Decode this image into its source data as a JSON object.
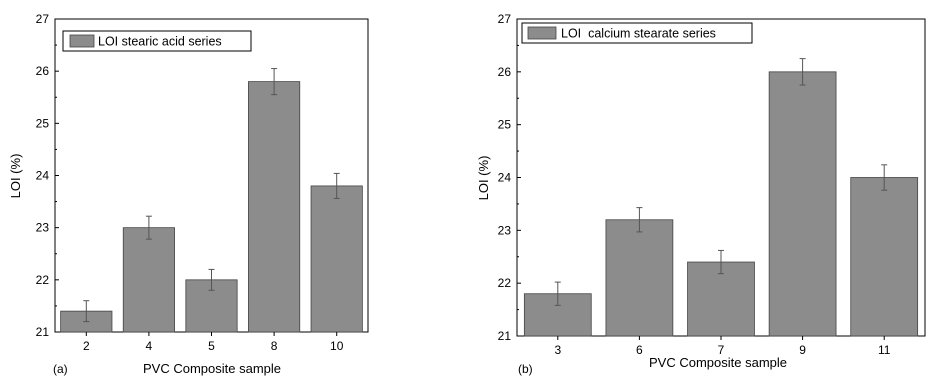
{
  "chart_data": [
    {
      "type": "bar",
      "panel_label": "(a)",
      "categories": [
        "2",
        "4",
        "5",
        "8",
        "10"
      ],
      "series": [
        {
          "name": "LOI stearic acid series",
          "values": [
            21.4,
            23.0,
            22.0,
            25.8,
            23.8
          ],
          "error": [
            0.2,
            0.22,
            0.2,
            0.25,
            0.24
          ]
        }
      ],
      "xlabel": "PVC Composite sample",
      "ylabel": "LOI (%)",
      "ylim": [
        21,
        27
      ],
      "yticks": [
        "21",
        "22",
        "23",
        "24",
        "25",
        "26",
        "27"
      ],
      "bar_color": "#8c8c8c",
      "legend_position": "top-left",
      "grid": false
    },
    {
      "type": "bar",
      "panel_label": "(b)",
      "categories": [
        "3",
        "6",
        "7",
        "9",
        "11"
      ],
      "series": [
        {
          "name": "LOI  calcium stearate series",
          "values": [
            21.8,
            23.2,
            22.4,
            26.0,
            24.0
          ],
          "error": [
            0.22,
            0.23,
            0.22,
            0.25,
            0.24
          ]
        }
      ],
      "xlabel": "PVC Composite sample",
      "ylabel": "LOI (%)",
      "ylim": [
        21,
        27
      ],
      "yticks": [
        "21",
        "22",
        "23",
        "24",
        "25",
        "26",
        "27"
      ],
      "bar_color": "#8c8c8c",
      "legend_position": "top-left",
      "grid": false
    }
  ]
}
